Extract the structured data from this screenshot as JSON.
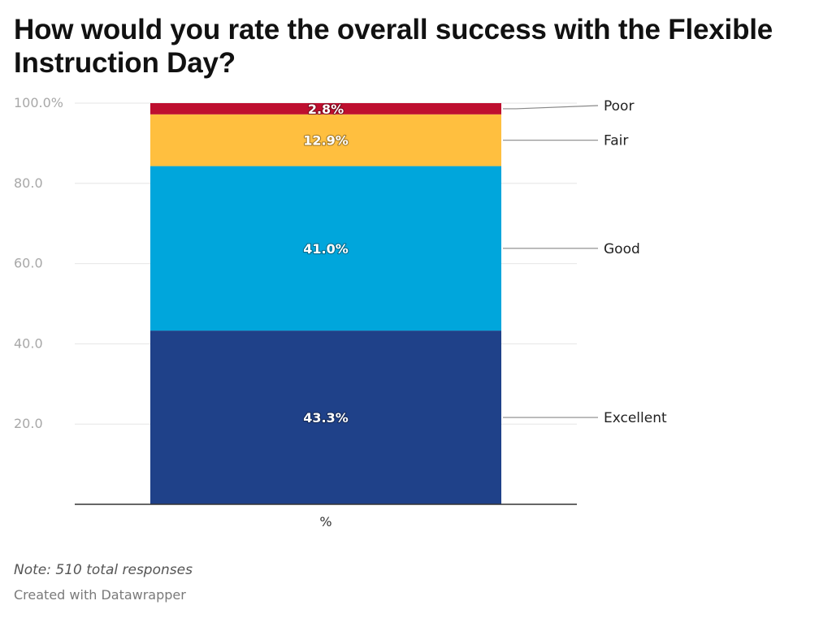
{
  "chart_data": {
    "type": "bar",
    "stacked": true,
    "title": "How would you rate the overall success with the Flexible Instruction Day?",
    "categories": [
      "%"
    ],
    "ylim": [
      0,
      100
    ],
    "y_ticks": [
      {
        "value": 20,
        "label": "20.0"
      },
      {
        "value": 40,
        "label": "40.0"
      },
      {
        "value": 60,
        "label": "60.0"
      },
      {
        "value": 80,
        "label": "80.0"
      },
      {
        "value": 100,
        "label": "100.0%"
      }
    ],
    "grid": true,
    "legend": "direct labels on right",
    "series": [
      {
        "name": "Excellent",
        "values": [
          43.3
        ],
        "label": "43.3%",
        "color": "#1f4189"
      },
      {
        "name": "Good",
        "values": [
          41.0
        ],
        "label": "41.0%",
        "color": "#00a6dc"
      },
      {
        "name": "Fair",
        "values": [
          12.9
        ],
        "label": "12.9%",
        "color": "#ffbf3f"
      },
      {
        "name": "Poor",
        "values": [
          2.8
        ],
        "label": "2.8%",
        "color": "#be0f2f"
      }
    ]
  },
  "note": "Note: 510 total responses",
  "credit": "Created with Datawrapper"
}
